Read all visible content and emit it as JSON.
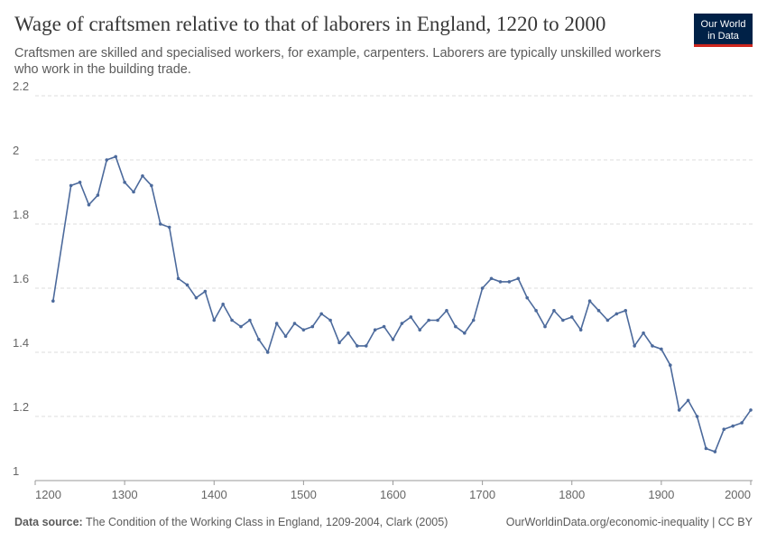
{
  "chart_data": {
    "type": "line",
    "title": "Wage of craftsmen relative to that of laborers in England, 1220 to 2000",
    "subtitle": [
      "Craftsmen are skilled and specialised workers, for example, carpenters. Laborers are typically unskilled workers",
      "who work in the building trade."
    ],
    "logo": [
      "Our World",
      "in Data"
    ],
    "source_label": "Data source:",
    "source": "The Condition of the Working Class in England, 1209-2004, Clark (2005)",
    "url": "OurWorldinData.org/economic-inequality | CC BY",
    "x": [
      1220,
      1240,
      1250,
      1260,
      1270,
      1280,
      1290,
      1300,
      1310,
      1320,
      1330,
      1340,
      1350,
      1360,
      1370,
      1380,
      1390,
      1400,
      1410,
      1420,
      1430,
      1440,
      1450,
      1460,
      1470,
      1480,
      1490,
      1500,
      1510,
      1520,
      1530,
      1540,
      1550,
      1560,
      1570,
      1580,
      1590,
      1600,
      1610,
      1620,
      1630,
      1640,
      1650,
      1660,
      1670,
      1680,
      1690,
      1700,
      1710,
      1720,
      1730,
      1740,
      1750,
      1760,
      1770,
      1780,
      1790,
      1800,
      1810,
      1820,
      1830,
      1840,
      1850,
      1860,
      1870,
      1880,
      1890,
      1900,
      1910,
      1920,
      1930,
      1940,
      1950,
      1960,
      1970,
      1980,
      1990,
      2000
    ],
    "series": [
      {
        "color": "#4c6a9c",
        "values": [
          1.56,
          1.92,
          1.93,
          1.86,
          1.89,
          2.0,
          2.01,
          1.93,
          1.9,
          1.95,
          1.92,
          1.8,
          1.79,
          1.63,
          1.61,
          1.57,
          1.59,
          1.5,
          1.55,
          1.5,
          1.48,
          1.5,
          1.44,
          1.4,
          1.49,
          1.45,
          1.49,
          1.47,
          1.48,
          1.52,
          1.5,
          1.43,
          1.46,
          1.42,
          1.42,
          1.47,
          1.48,
          1.44,
          1.49,
          1.51,
          1.47,
          1.5,
          1.5,
          1.53,
          1.48,
          1.46,
          1.5,
          1.6,
          1.63,
          1.62,
          1.62,
          1.63,
          1.57,
          1.53,
          1.48,
          1.53,
          1.5,
          1.51,
          1.47,
          1.56,
          1.53,
          1.5,
          1.52,
          1.53,
          1.42,
          1.46,
          1.42,
          1.41,
          1.36,
          1.22,
          1.25,
          1.2,
          1.1,
          1.09,
          1.16,
          1.17,
          1.18,
          1.22
        ]
      }
    ],
    "xlim": [
      1200,
      2000
    ],
    "xticks": [
      1200,
      1300,
      1400,
      1500,
      1600,
      1700,
      1800,
      1900,
      2000
    ],
    "ylim": [
      1,
      2.2
    ],
    "yticks": [
      1,
      1.2,
      1.4,
      1.6,
      1.8,
      2,
      2.2
    ],
    "grid": true
  }
}
